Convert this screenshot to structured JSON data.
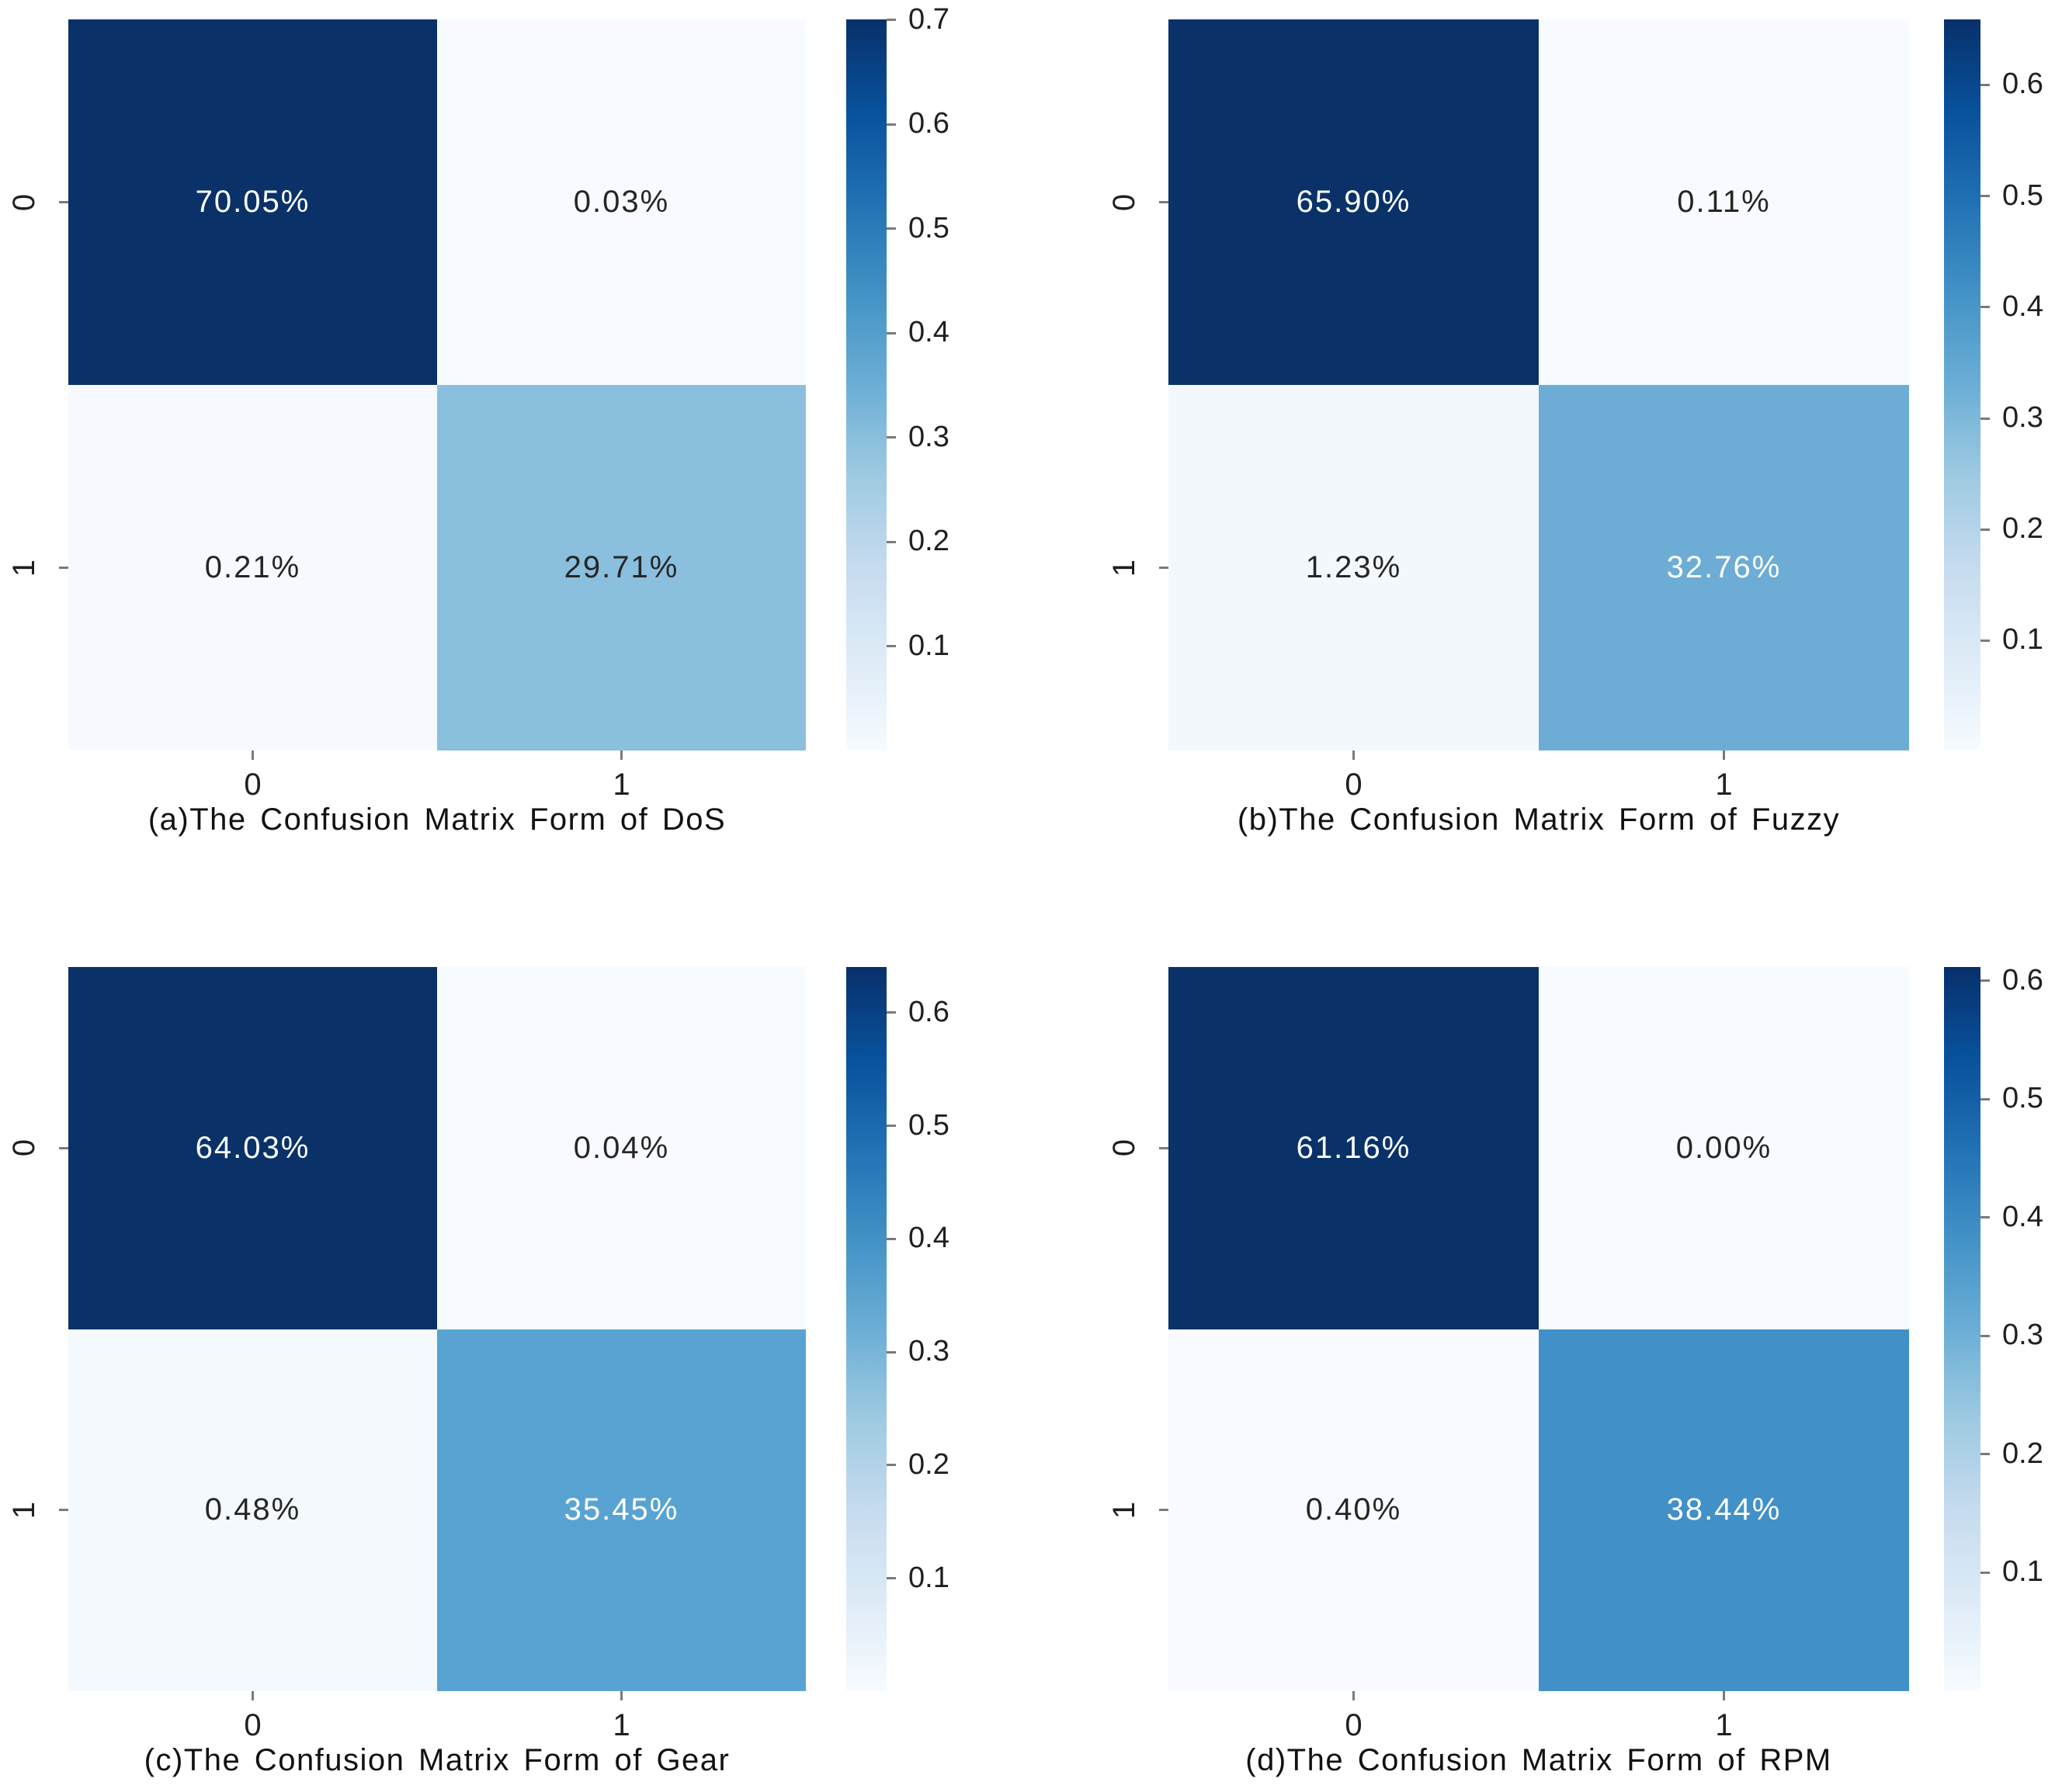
{
  "figure": {
    "background": "#ffffff",
    "text_color": "#1f1f1f",
    "tick_mark_color": "#7a7a7a"
  },
  "colormap": {
    "name": "Blues",
    "stops_low_to_high": [
      "#f7fbff",
      "#deebf7",
      "#c6dbef",
      "#9ecae1",
      "#6baed6",
      "#4292c6",
      "#2171b5",
      "#08519c",
      "#08306b"
    ]
  },
  "chart_data": [
    {
      "id": "a",
      "type": "heatmap",
      "title": "(a)The Confusion Matrix Form of DoS",
      "x_tick_labels": [
        "0",
        "1"
      ],
      "y_tick_labels": [
        "0",
        "1"
      ],
      "matrix_percent": [
        [
          70.05,
          0.03
        ],
        [
          0.21,
          29.71
        ]
      ],
      "cell_labels": [
        [
          "70.05%",
          "0.03%"
        ],
        [
          "0.21%",
          "29.71%"
        ]
      ],
      "cell_colors": [
        [
          "#0a3269",
          "#f7fbff"
        ],
        [
          "#f6fafe",
          "#8bbfde"
        ]
      ],
      "cell_text_colors": [
        [
          "#ffffff",
          "#262626"
        ],
        [
          "#262626",
          "#262626"
        ]
      ],
      "colorbar": {
        "position": "right",
        "vmin": 0.0003,
        "vmax": 0.7005,
        "tick_values": [
          0.7,
          0.6,
          0.5,
          0.4,
          0.3,
          0.2,
          0.1
        ],
        "tick_labels": [
          "0.7",
          "0.6",
          "0.5",
          "0.4",
          "0.3",
          "0.2",
          "0.1"
        ]
      }
    },
    {
      "id": "b",
      "type": "heatmap",
      "title": "(b)The Confusion Matrix Form of Fuzzy",
      "x_tick_labels": [
        "0",
        "1"
      ],
      "y_tick_labels": [
        "0",
        "1"
      ],
      "matrix_percent": [
        [
          65.9,
          0.11
        ],
        [
          1.23,
          32.76
        ]
      ],
      "cell_labels": [
        [
          "65.90%",
          "0.11%"
        ],
        [
          "1.23%",
          "32.76%"
        ]
      ],
      "cell_colors": [
        [
          "#0a3269",
          "#f7fbff"
        ],
        [
          "#f3f8fd",
          "#6cacd5"
        ]
      ],
      "cell_text_colors": [
        [
          "#ffffff",
          "#262626"
        ],
        [
          "#262626",
          "#ffffff"
        ]
      ],
      "colorbar": {
        "position": "right",
        "vmin": 0.0011,
        "vmax": 0.659,
        "tick_values": [
          0.6,
          0.5,
          0.4,
          0.3,
          0.2,
          0.1
        ],
        "tick_labels": [
          "0.6",
          "0.5",
          "0.4",
          "0.3",
          "0.2",
          "0.1"
        ]
      }
    },
    {
      "id": "c",
      "type": "heatmap",
      "title": "(c)The Confusion Matrix Form of Gear",
      "x_tick_labels": [
        "0",
        "1"
      ],
      "y_tick_labels": [
        "0",
        "1"
      ],
      "matrix_percent": [
        [
          64.03,
          0.04
        ],
        [
          0.48,
          35.45
        ]
      ],
      "cell_labels": [
        [
          "64.03%",
          "0.04%"
        ],
        [
          "0.48%",
          "35.45%"
        ]
      ],
      "cell_colors": [
        [
          "#0a3269",
          "#f7fbff"
        ],
        [
          "#f4f9fe",
          "#58a3d2"
        ]
      ],
      "cell_text_colors": [
        [
          "#ffffff",
          "#262626"
        ],
        [
          "#262626",
          "#ffffff"
        ]
      ],
      "colorbar": {
        "position": "right",
        "vmin": 0.0004,
        "vmax": 0.6403,
        "tick_values": [
          0.6,
          0.5,
          0.4,
          0.3,
          0.2,
          0.1
        ],
        "tick_labels": [
          "0.6",
          "0.5",
          "0.4",
          "0.3",
          "0.2",
          "0.1"
        ]
      }
    },
    {
      "id": "d",
      "type": "heatmap",
      "title": "(d)The Confusion Matrix Form of RPM",
      "x_tick_labels": [
        "0",
        "1"
      ],
      "y_tick_labels": [
        "0",
        "1"
      ],
      "matrix_percent": [
        [
          61.16,
          0.0
        ],
        [
          0.4,
          38.44
        ]
      ],
      "cell_labels": [
        [
          "61.16%",
          "0.00%"
        ],
        [
          "0.40%",
          "38.44%"
        ]
      ],
      "cell_colors": [
        [
          "#0a3269",
          "#f7fbff"
        ],
        [
          "#f7fbff",
          "#4190c8"
        ]
      ],
      "cell_text_colors": [
        [
          "#ffffff",
          "#262626"
        ],
        [
          "#262626",
          "#ffffff"
        ]
      ],
      "colorbar": {
        "position": "right",
        "vmin": 0.0,
        "vmax": 0.6116,
        "tick_values": [
          0.6,
          0.5,
          0.4,
          0.3,
          0.2,
          0.1
        ],
        "tick_labels": [
          "0.6",
          "0.5",
          "0.4",
          "0.3",
          "0.2",
          "0.1"
        ]
      }
    }
  ]
}
